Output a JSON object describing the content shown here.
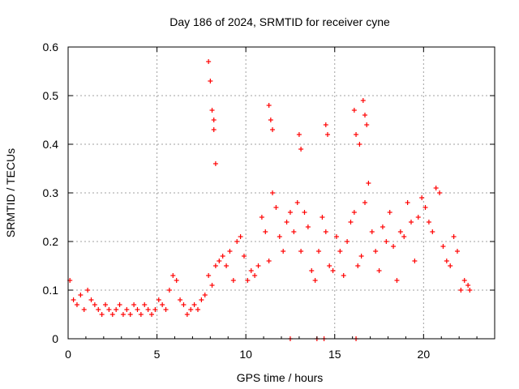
{
  "chart_data": {
    "type": "scatter",
    "title": "Day 186 of 2024, SRMTID for receiver cyne",
    "xlabel": "GPS time / hours",
    "ylabel": "SRMTID / TECUs",
    "xlim": [
      0,
      24
    ],
    "ylim": [
      0,
      0.6
    ],
    "xticks": [
      0,
      5,
      10,
      15,
      20
    ],
    "xtick_labels": [
      "0",
      "5",
      "10",
      "15",
      "20"
    ],
    "yticks": [
      0,
      0.1,
      0.2,
      0.3,
      0.4,
      0.5,
      0.6
    ],
    "ytick_labels": [
      "0",
      "0.1",
      "0.2",
      "0.3",
      "0.4",
      "0.5",
      "0.6"
    ],
    "grid": true,
    "marker": "+",
    "series": [
      {
        "name": "SRMTID",
        "color": "#ff0000",
        "x": [
          0.1,
          0.3,
          0.5,
          0.7,
          0.9,
          1.1,
          1.3,
          1.5,
          1.7,
          1.9,
          2.1,
          2.3,
          2.5,
          2.7,
          2.9,
          3.1,
          3.3,
          3.5,
          3.7,
          3.9,
          4.1,
          4.3,
          4.5,
          4.7,
          4.9,
          5.1,
          5.3,
          5.5,
          5.7,
          5.9,
          6.1,
          6.3,
          6.5,
          6.7,
          6.9,
          7.1,
          7.3,
          7.5,
          7.7,
          7.9,
          8.1,
          8.3,
          8.5,
          8.7,
          8.9,
          9.1,
          9.3,
          9.5,
          9.7,
          9.9,
          10.1,
          10.3,
          10.5,
          10.7,
          10.9,
          11.1,
          11.3,
          11.5,
          11.7,
          11.9,
          12.1,
          12.3,
          12.5,
          12.7,
          12.9,
          13.1,
          13.3,
          13.5,
          13.7,
          13.9,
          14.1,
          14.3,
          14.5,
          14.7,
          14.9,
          15.1,
          15.3,
          15.5,
          15.7,
          15.9,
          16.1,
          16.3,
          16.5,
          16.7,
          16.9,
          17.1,
          17.3,
          17.5,
          17.7,
          17.9,
          18.1,
          18.3,
          18.5,
          18.7,
          18.9,
          19.1,
          19.3,
          19.5,
          19.7,
          19.9,
          20.1,
          20.3,
          20.5,
          20.7,
          20.9,
          21.1,
          21.3,
          21.5,
          21.7,
          21.9,
          22.1,
          22.3,
          22.5,
          22.6,
          7.9,
          8.0,
          8.1,
          8.2,
          8.2,
          8.3,
          11.3,
          11.4,
          11.5,
          13.0,
          13.1,
          14.5,
          14.6,
          16.1,
          16.2,
          16.4,
          16.6,
          16.7,
          16.8,
          12.5,
          14.0,
          14.4,
          16.2
        ],
        "y": [
          0.12,
          0.08,
          0.07,
          0.09,
          0.06,
          0.1,
          0.08,
          0.07,
          0.06,
          0.05,
          0.07,
          0.06,
          0.05,
          0.06,
          0.07,
          0.05,
          0.06,
          0.05,
          0.07,
          0.06,
          0.05,
          0.07,
          0.06,
          0.05,
          0.06,
          0.08,
          0.07,
          0.06,
          0.1,
          0.13,
          0.12,
          0.08,
          0.07,
          0.05,
          0.06,
          0.07,
          0.06,
          0.08,
          0.09,
          0.13,
          0.11,
          0.15,
          0.16,
          0.17,
          0.15,
          0.18,
          0.12,
          0.2,
          0.21,
          0.17,
          0.12,
          0.14,
          0.13,
          0.15,
          0.25,
          0.22,
          0.16,
          0.3,
          0.27,
          0.21,
          0.18,
          0.24,
          0.26,
          0.22,
          0.28,
          0.18,
          0.26,
          0.23,
          0.14,
          0.12,
          0.18,
          0.25,
          0.22,
          0.15,
          0.14,
          0.21,
          0.18,
          0.13,
          0.2,
          0.24,
          0.26,
          0.15,
          0.17,
          0.28,
          0.32,
          0.22,
          0.18,
          0.14,
          0.23,
          0.2,
          0.26,
          0.19,
          0.12,
          0.22,
          0.21,
          0.28,
          0.24,
          0.16,
          0.25,
          0.29,
          0.27,
          0.24,
          0.22,
          0.31,
          0.3,
          0.19,
          0.16,
          0.15,
          0.21,
          0.18,
          0.1,
          0.12,
          0.11,
          0.1,
          0.57,
          0.53,
          0.47,
          0.45,
          0.43,
          0.36,
          0.48,
          0.45,
          0.43,
          0.42,
          0.39,
          0.44,
          0.42,
          0.47,
          0.42,
          0.4,
          0.49,
          0.46,
          0.44,
          0.0,
          0.0,
          0.0,
          0.0
        ]
      }
    ]
  }
}
